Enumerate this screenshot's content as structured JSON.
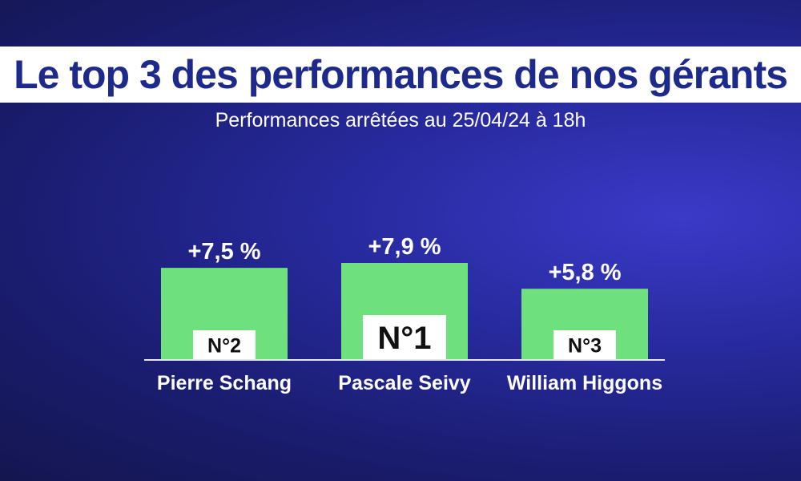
{
  "title": "Le top 3 des performances de nos gérants",
  "subtitle": "Performances arrêtées au 25/04/24 à 18h",
  "colors": {
    "bar": "#6ee07e",
    "axis": "#e6e6f0",
    "text": "#ffffff",
    "title_text": "#1d2a8c",
    "rank_box": "#ffffff",
    "rank_text": "#111111"
  },
  "chart_data": {
    "type": "bar",
    "categories": [
      "Pierre Schang",
      "Pascale Seivy",
      "William Higgons"
    ],
    "values": [
      7.5,
      7.9,
      5.8
    ],
    "value_labels": [
      "+7,5 %",
      "+7,9 %",
      "+5,8 %"
    ],
    "ranks": [
      "N°2",
      "N°1",
      "N°3"
    ],
    "ylim": [
      0,
      7.9
    ],
    "grid": false,
    "legend": "none"
  }
}
